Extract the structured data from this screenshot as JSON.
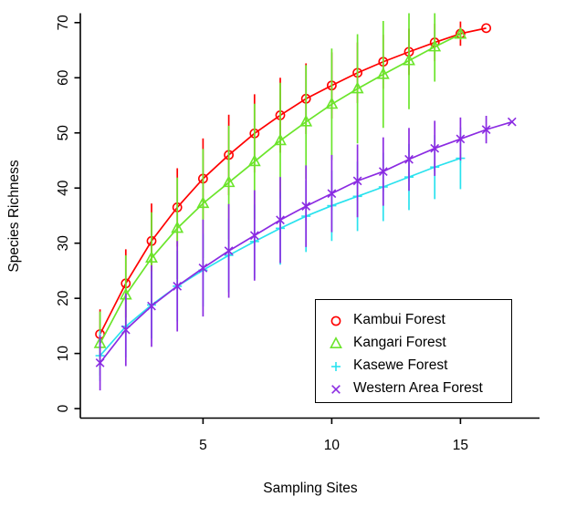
{
  "figure": {
    "background": "#ffffff",
    "axis_color": "#000000",
    "title": ""
  },
  "chart_data": {
    "type": "line",
    "title": "",
    "xlabel": "Sampling Sites",
    "ylabel": "Species Richness",
    "xlim": [
      1,
      17
    ],
    "ylim": [
      0,
      70
    ],
    "x_ticks": [
      5,
      10,
      15
    ],
    "y_ticks": [
      0,
      10,
      20,
      30,
      40,
      50,
      60,
      70
    ],
    "grid": false,
    "legend_position": "bottom-right",
    "error_bars": "vertical plus-minus lines, no caps",
    "series": [
      {
        "name": "Kambui Forest",
        "color": "#FF0000",
        "marker": "open-circle",
        "x": [
          1,
          2,
          3,
          4,
          5,
          6,
          7,
          8,
          9,
          10,
          11,
          12,
          13,
          14,
          15,
          16
        ],
        "y": [
          13.5,
          22.7,
          30.4,
          36.5,
          41.7,
          46.0,
          49.9,
          53.2,
          56.2,
          58.6,
          60.9,
          62.9,
          64.7,
          66.4,
          68.0,
          69.0
        ],
        "err": [
          4.5,
          6.2,
          6.8,
          7.1,
          7.3,
          7.3,
          7.1,
          6.8,
          6.4,
          6.0,
          5.5,
          4.9,
          4.2,
          3.4,
          2.2,
          0
        ]
      },
      {
        "name": "Kangari Forest",
        "color": "#6BE52B",
        "marker": "open-triangle",
        "x": [
          1,
          2,
          3,
          4,
          5,
          6,
          7,
          8,
          9,
          10,
          11,
          12,
          13,
          14,
          15
        ],
        "y": [
          11.8,
          20.6,
          27.3,
          32.7,
          37.2,
          41.0,
          44.8,
          48.6,
          52.0,
          55.2,
          58.0,
          60.6,
          63.1,
          65.6,
          67.9
        ],
        "err": [
          5.8,
          7.2,
          8.3,
          9.2,
          9.9,
          10.3,
          10.5,
          10.5,
          10.3,
          10.1,
          9.9,
          9.7,
          8.8,
          6.3,
          1.0
        ]
      },
      {
        "name": "Kasewe Forest",
        "color": "#29E2EE",
        "marker": "plus",
        "x": [
          1,
          2,
          3,
          4,
          5,
          6,
          7,
          8,
          9,
          10,
          11,
          12,
          13,
          14,
          15
        ],
        "y": [
          9.6,
          14.9,
          18.8,
          22.2,
          25.1,
          27.8,
          30.3,
          32.7,
          34.9,
          36.8,
          38.5,
          40.2,
          42.0,
          43.8,
          45.4
        ],
        "err": [
          4.6,
          5.6,
          6.1,
          6.4,
          6.6,
          6.7,
          6.7,
          6.6,
          6.5,
          6.4,
          6.3,
          6.2,
          6.0,
          5.8,
          5.6
        ]
      },
      {
        "name": "Western Area Forest",
        "color": "#8B2BE2",
        "marker": "x",
        "x": [
          1,
          2,
          3,
          4,
          5,
          6,
          7,
          8,
          9,
          10,
          11,
          12,
          13,
          14,
          15,
          16,
          17
        ],
        "y": [
          8.3,
          14.3,
          18.6,
          22.2,
          25.5,
          28.6,
          31.4,
          34.2,
          36.7,
          39.0,
          41.3,
          43.0,
          45.2,
          47.2,
          48.9,
          50.6,
          52.0
        ],
        "err": [
          5.0,
          6.6,
          7.4,
          8.2,
          8.8,
          8.5,
          8.2,
          7.8,
          7.4,
          7.0,
          6.6,
          6.2,
          5.7,
          5.0,
          3.9,
          2.5,
          0
        ]
      }
    ]
  },
  "legend": {
    "items": [
      "Kambui Forest",
      "Kangari Forest",
      "Kasewe Forest",
      "Western Area Forest"
    ]
  }
}
